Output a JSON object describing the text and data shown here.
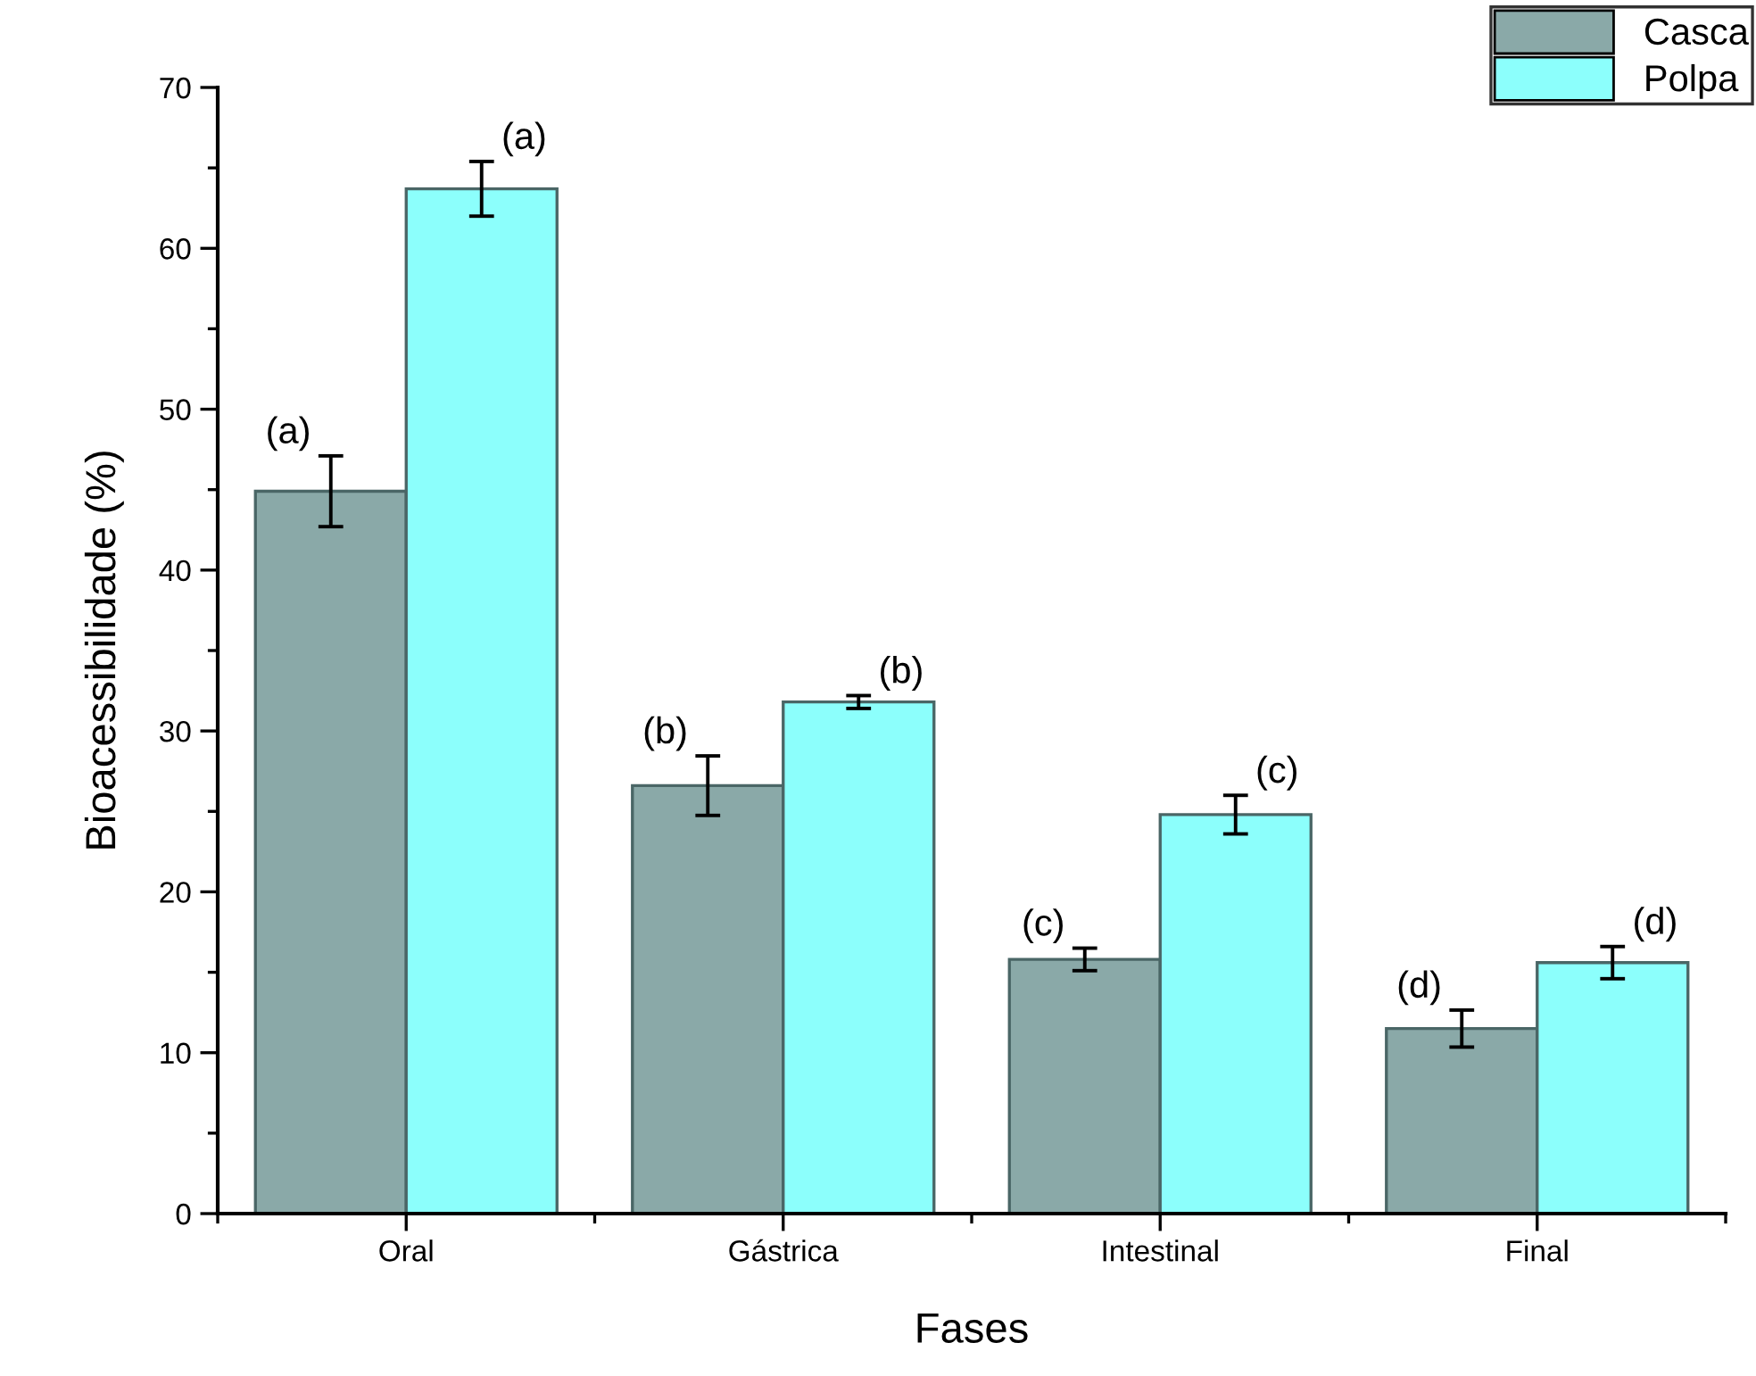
{
  "chart_data": {
    "type": "bar",
    "xlabel": "Fases",
    "ylabel": "Bioacessibilidade (%)",
    "categories": [
      "Oral",
      "Gástrica",
      "Intestinal",
      "Final"
    ],
    "series": [
      {
        "name": "Casca",
        "color": "#8aa9a8",
        "values": [
          44.9,
          26.6,
          15.8,
          11.5
        ],
        "errors": [
          2.2,
          1.85,
          0.7,
          1.15
        ]
      },
      {
        "name": "Polpa",
        "color": "#8cfffc",
        "values": [
          63.7,
          31.8,
          24.8,
          15.6
        ],
        "errors": [
          1.7,
          0.4,
          1.2,
          1.0
        ]
      }
    ],
    "ylim": [
      0,
      70
    ],
    "yticks": [
      0,
      10,
      20,
      30,
      40,
      50,
      60,
      70
    ],
    "grid": false,
    "legend": "top right",
    "annotations": [
      {
        "text": "(a)",
        "x": "Oral",
        "y": 44.9
      },
      {
        "text": "(a)",
        "x": "Oral",
        "y": 63.7
      },
      {
        "text": "(b)",
        "x": "Gástrica",
        "y": 26.6
      },
      {
        "text": "(b)",
        "x": "Gástrica",
        "y": 31.8
      },
      {
        "text": "(c)",
        "x": "Intestinal",
        "y": 15.8
      },
      {
        "text": "(c)",
        "x": "Intestinal",
        "y": 24.8
      },
      {
        "text": "(d)",
        "x": "Final",
        "y": 11.5
      },
      {
        "text": "(d)",
        "x": "Final",
        "y": 15.6
      }
    ]
  }
}
